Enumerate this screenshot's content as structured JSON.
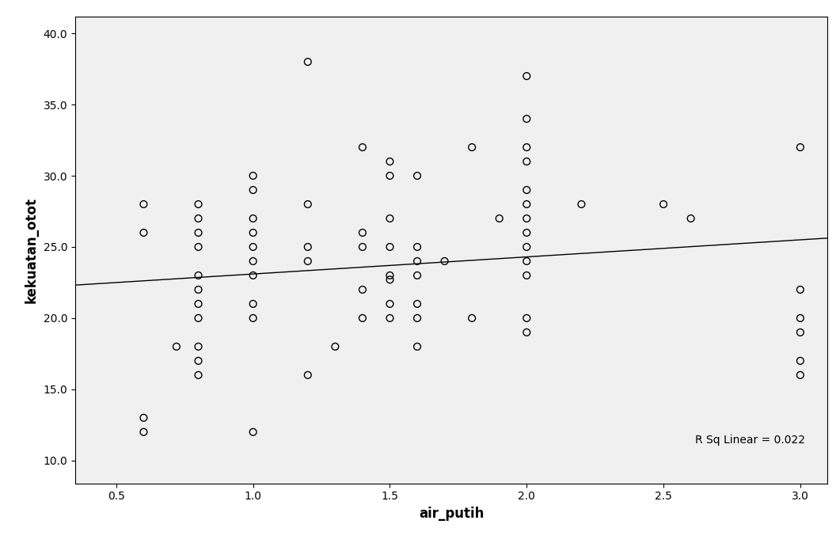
{
  "chart_data": {
    "type": "scatter",
    "x_label": "air_putih",
    "y_label": "kekuatan_otot",
    "annotation": "R Sq Linear = 0.022",
    "x": [
      0.6,
      0.6,
      0.6,
      0.6,
      0.72,
      0.8,
      0.8,
      0.8,
      0.8,
      0.8,
      0.8,
      0.8,
      0.8,
      0.8,
      0.8,
      0.8,
      1.0,
      1.0,
      1.0,
      1.0,
      1.0,
      1.0,
      1.0,
      1.0,
      1.0,
      1.0,
      1.2,
      1.2,
      1.2,
      1.2,
      1.2,
      1.3,
      1.4,
      1.4,
      1.4,
      1.4,
      1.4,
      1.5,
      1.5,
      1.5,
      1.5,
      1.5,
      1.5,
      1.5,
      1.5,
      1.6,
      1.6,
      1.6,
      1.6,
      1.6,
      1.6,
      1.6,
      1.7,
      1.8,
      1.8,
      1.9,
      2.0,
      2.0,
      2.0,
      2.0,
      2.0,
      2.0,
      2.0,
      2.0,
      2.0,
      2.0,
      2.0,
      2.0,
      2.0,
      2.2,
      2.5,
      2.6,
      3.0,
      3.0,
      3.0,
      3.0,
      3.0,
      3.0
    ],
    "values": [
      28,
      26,
      13,
      12,
      18,
      28,
      27,
      26,
      25,
      23,
      22,
      21,
      20,
      18,
      17,
      16,
      30,
      29,
      27,
      26,
      25,
      24,
      23,
      21,
      20,
      12,
      38,
      28,
      25,
      24,
      16,
      18,
      32,
      26,
      25,
      22,
      20,
      31,
      30,
      27,
      25,
      23,
      22.7,
      21,
      20,
      30,
      25,
      24,
      23,
      21,
      20,
      18,
      24,
      32,
      20,
      27,
      37,
      34,
      32,
      31,
      29,
      28,
      27,
      26,
      25,
      24,
      23,
      20,
      19,
      28,
      28,
      27,
      32,
      22,
      20,
      19,
      17,
      16
    ],
    "fit_line": {
      "intercept": 21.9,
      "slope": 1.2
    },
    "marker": "o",
    "color": "#000000",
    "xlim": [
      0.35,
      3.1
    ],
    "xticks": [
      0.5,
      {
        "value": 1,
        "label": "1.0"
      },
      1.5,
      {
        "value": 2,
        "label": "2.0"
      },
      2.5,
      {
        "value": 3,
        "label": "3.0"
      }
    ],
    "ylim": [
      8.4,
      41.2
    ],
    "yticks": [
      {
        "value": 10,
        "label": "10.0"
      },
      {
        "value": 15,
        "label": "15.0"
      },
      {
        "value": 20,
        "label": "20.0"
      },
      {
        "value": 25,
        "label": "25.0"
      },
      {
        "value": 30,
        "label": "30.0"
      },
      {
        "value": 35,
        "label": "35.0"
      },
      {
        "value": 40,
        "label": "40.0"
      }
    ],
    "grid": false
  }
}
